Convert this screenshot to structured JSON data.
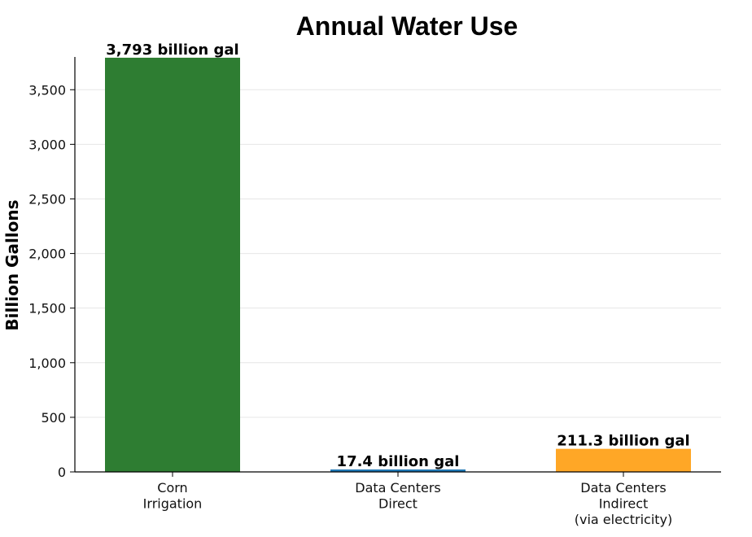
{
  "chart_data": {
    "type": "bar",
    "title": "Annual Water Use",
    "xlabel": "",
    "ylabel": "Billion Gallons",
    "ylim": [
      0,
      3800
    ],
    "yticks": [
      0,
      500,
      1000,
      1500,
      2000,
      2500,
      3000,
      3500
    ],
    "ytick_labels": [
      "0",
      "500",
      "1,000",
      "1,500",
      "2,000",
      "2,500",
      "3,000",
      "3,500"
    ],
    "grid": true,
    "categories": [
      [
        "Corn",
        "Irrigation"
      ],
      [
        "Data Centers",
        "Direct"
      ],
      [
        "Data Centers",
        "Indirect",
        "(via electricity)"
      ]
    ],
    "values": [
      3793,
      17.4,
      211.3
    ],
    "data_labels": [
      "3,793 billion gal",
      "17.4 billion gal",
      "211.3 billion gal"
    ],
    "colors": [
      "#2e7d32",
      "#1f77b4",
      "#ffa726"
    ]
  }
}
